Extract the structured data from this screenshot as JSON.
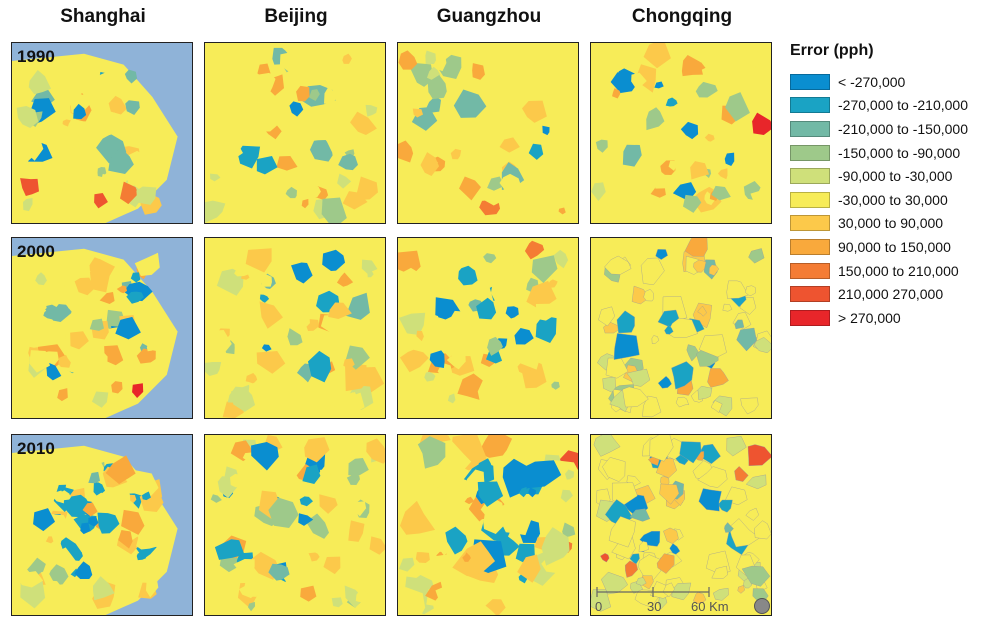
{
  "columns": [
    "Shanghai",
    "Beijing",
    "Guangzhou",
    "Chongqing"
  ],
  "years": [
    "1990",
    "2000",
    "2010"
  ],
  "legend": {
    "title": "Error (pph)",
    "items": [
      {
        "label": "< -270,000",
        "color": "#0a8ed0"
      },
      {
        "label": "-270,000 to -210,000",
        "color": "#1aa3c4"
      },
      {
        "label": "-210,000 to -150,000",
        "color": "#72b9a6"
      },
      {
        "label": "-150,000 to -90,000",
        "color": "#9ec98a"
      },
      {
        "label": "-90,000 to -30,000",
        "color": "#cfe07a"
      },
      {
        "label": "-30,000 to 30,000",
        "color": "#f7ec58"
      },
      {
        "label": "30,000 to 90,000",
        "color": "#fcc94a"
      },
      {
        "label": "90,000 to 150,000",
        "color": "#f9a93c"
      },
      {
        "label": "150,000 to 210,000",
        "color": "#f47c34"
      },
      {
        "label": "210,000 270,000",
        "color": "#ee5430"
      },
      {
        "label": "> 270,000",
        "color": "#e8262a"
      }
    ]
  },
  "map_colors": {
    "water": "#8fb3d8",
    "land_outside": "#c8c8c8"
  },
  "scalebar": {
    "ticks": [
      "0",
      "30",
      "60 Km"
    ]
  }
}
